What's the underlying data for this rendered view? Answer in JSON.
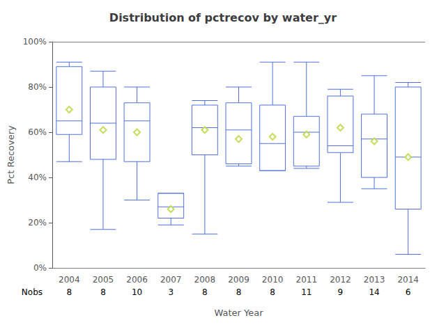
{
  "chart_data": {
    "type": "boxplot",
    "title": "Distribution of pctrecov by water_yr",
    "xlabel": "Water Year",
    "ylabel": "Pct Recovery",
    "categories": [
      "2004",
      "2005",
      "2006",
      "2007",
      "2008",
      "2009",
      "2010",
      "2011",
      "2012",
      "2013",
      "2014"
    ],
    "whislo": [
      0.47,
      0.17,
      0.3,
      0.19,
      0.15,
      0.45,
      0.43,
      0.44,
      0.29,
      0.35,
      0.06
    ],
    "q1": [
      0.59,
      0.48,
      0.47,
      0.22,
      0.5,
      0.46,
      0.43,
      0.45,
      0.51,
      0.4,
      0.26
    ],
    "median": [
      0.65,
      0.64,
      0.65,
      0.27,
      0.62,
      0.61,
      0.55,
      0.6,
      0.54,
      0.57,
      0.49
    ],
    "q3": [
      0.89,
      0.8,
      0.73,
      0.33,
      0.72,
      0.73,
      0.72,
      0.67,
      0.76,
      0.68,
      0.8
    ],
    "whishi": [
      0.91,
      0.87,
      0.8,
      0.33,
      0.74,
      0.8,
      0.91,
      0.91,
      0.79,
      0.85,
      0.82
    ],
    "mean": [
      0.7,
      0.61,
      0.6,
      0.26,
      0.61,
      0.57,
      0.58,
      0.59,
      0.62,
      0.56,
      0.49
    ],
    "marker": "diamond",
    "nobs_label": "Nobs",
    "nobs": [
      8,
      8,
      10,
      3,
      8,
      8,
      8,
      11,
      9,
      14,
      6
    ],
    "ylim": [
      0,
      1.0
    ],
    "yticks": [
      {
        "value": 0,
        "label": "0%"
      },
      {
        "value": 0.2,
        "label": "20%"
      },
      {
        "value": 0.4,
        "label": "40%"
      },
      {
        "value": 0.6,
        "label": "60%"
      },
      {
        "value": 0.8,
        "label": "80%"
      },
      {
        "value": 1.0,
        "label": "100%"
      }
    ],
    "grid": false
  }
}
